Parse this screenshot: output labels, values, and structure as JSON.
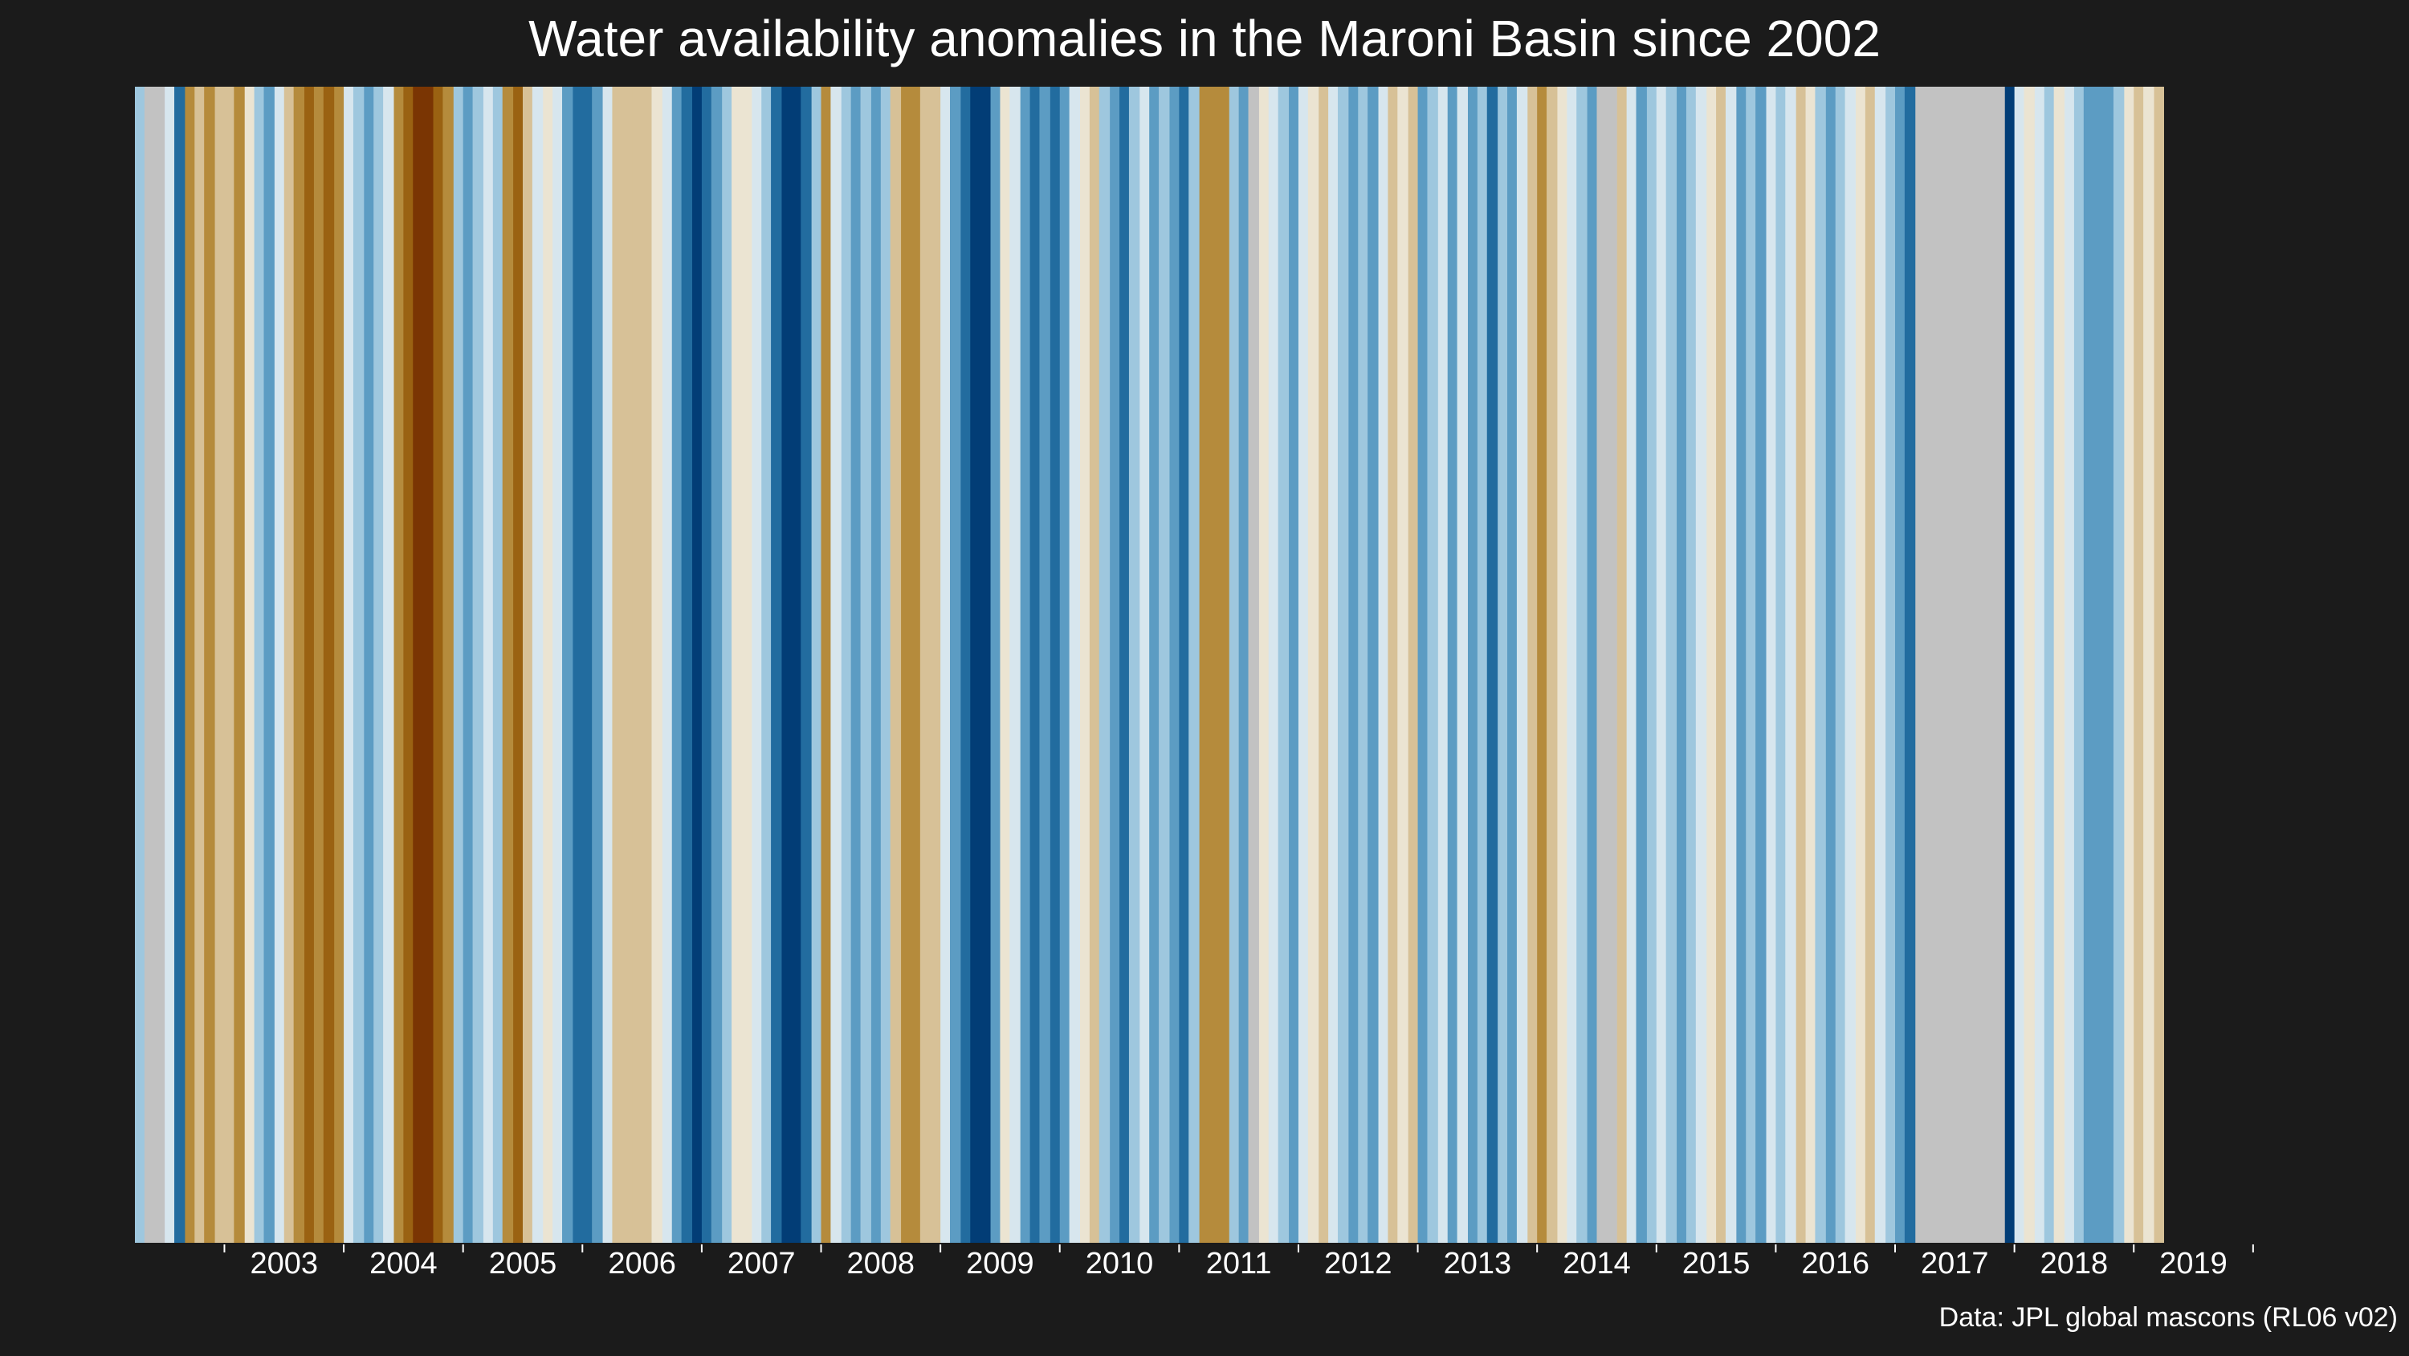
{
  "title": "Water availability anomalies in the Maroni Basin since 2002",
  "caption": "Data: JPL global mascons (RL06 v02)",
  "colors": {
    "background": "#1b1b1b",
    "text": "#ffffff",
    "missing": "#c2c2c2",
    "scale": [
      "#7a3503",
      "#9a6212",
      "#b58b3c",
      "#d7c197",
      "#ebe4d2",
      "#d7e6ee",
      "#9ec7de",
      "#5c9cc3",
      "#226c9f",
      "#023d76"
    ]
  },
  "chart_data": {
    "type": "heatmap",
    "title": "Water availability anomalies in the Maroni Basin since 2002",
    "xlabel": "",
    "ylabel": "",
    "x_tick_labels": [
      "2003",
      "2004",
      "2005",
      "2006",
      "2007",
      "2008",
      "2009",
      "2010",
      "2011",
      "2012",
      "2013",
      "2014",
      "2015",
      "2016",
      "2017",
      "2018",
      "2019"
    ],
    "x_range_years": [
      2002.25,
      2020.25
    ],
    "value_scale": "anomaly class from -5 (driest, dark brown) to +5 (wettest, dark blue); null = no data (grey)",
    "stripes": [
      {
        "start": 2002.25,
        "end": 2002.33,
        "value": 2
      },
      {
        "start": 2002.33,
        "end": 2002.5,
        "value": null
      },
      {
        "start": 2002.5,
        "end": 2002.58,
        "value": 1
      },
      {
        "start": 2002.58,
        "end": 2002.67,
        "value": 4
      },
      {
        "start": 2002.67,
        "end": 2002.75,
        "value": -3
      },
      {
        "start": 2002.75,
        "end": 2002.83,
        "value": -2
      },
      {
        "start": 2002.83,
        "end": 2002.92,
        "value": -3
      },
      {
        "start": 2002.92,
        "end": 2003.08,
        "value": -2
      },
      {
        "start": 2003.08,
        "end": 2003.17,
        "value": -3
      },
      {
        "start": 2003.17,
        "end": 2003.25,
        "value": -1
      },
      {
        "start": 2003.25,
        "end": 2003.33,
        "value": 2
      },
      {
        "start": 2003.33,
        "end": 2003.42,
        "value": 3
      },
      {
        "start": 2003.42,
        "end": 2003.5,
        "value": 1
      },
      {
        "start": 2003.5,
        "end": 2003.58,
        "value": -2
      },
      {
        "start": 2003.58,
        "end": 2003.67,
        "value": -3
      },
      {
        "start": 2003.67,
        "end": 2003.75,
        "value": -4
      },
      {
        "start": 2003.75,
        "end": 2003.83,
        "value": -3
      },
      {
        "start": 2003.83,
        "end": 2003.92,
        "value": -4
      },
      {
        "start": 2003.92,
        "end": 2004.0,
        "value": -3
      },
      {
        "start": 2004.0,
        "end": 2004.08,
        "value": 1
      },
      {
        "start": 2004.08,
        "end": 2004.17,
        "value": 2
      },
      {
        "start": 2004.17,
        "end": 2004.25,
        "value": 3
      },
      {
        "start": 2004.25,
        "end": 2004.33,
        "value": 2
      },
      {
        "start": 2004.33,
        "end": 2004.42,
        "value": 1
      },
      {
        "start": 2004.42,
        "end": 2004.5,
        "value": -3
      },
      {
        "start": 2004.5,
        "end": 2004.58,
        "value": -4
      },
      {
        "start": 2004.58,
        "end": 2004.75,
        "value": -5
      },
      {
        "start": 2004.75,
        "end": 2004.83,
        "value": -4
      },
      {
        "start": 2004.83,
        "end": 2004.92,
        "value": -3
      },
      {
        "start": 2004.92,
        "end": 2005.0,
        "value": 2
      },
      {
        "start": 2005.0,
        "end": 2005.08,
        "value": 3
      },
      {
        "start": 2005.08,
        "end": 2005.17,
        "value": 2
      },
      {
        "start": 2005.17,
        "end": 2005.25,
        "value": 1
      },
      {
        "start": 2005.25,
        "end": 2005.33,
        "value": 2
      },
      {
        "start": 2005.33,
        "end": 2005.42,
        "value": -3
      },
      {
        "start": 2005.42,
        "end": 2005.5,
        "value": -4
      },
      {
        "start": 2005.5,
        "end": 2005.58,
        "value": -2
      },
      {
        "start": 2005.58,
        "end": 2005.67,
        "value": 1
      },
      {
        "start": 2005.67,
        "end": 2005.75,
        "value": -1
      },
      {
        "start": 2005.75,
        "end": 2005.83,
        "value": 1
      },
      {
        "start": 2005.83,
        "end": 2005.92,
        "value": 3
      },
      {
        "start": 2005.92,
        "end": 2006.08,
        "value": 4
      },
      {
        "start": 2006.08,
        "end": 2006.17,
        "value": 3
      },
      {
        "start": 2006.17,
        "end": 2006.25,
        "value": 1
      },
      {
        "start": 2006.25,
        "end": 2006.42,
        "value": -2
      },
      {
        "start": 2006.42,
        "end": 2006.58,
        "value": -2
      },
      {
        "start": 2006.58,
        "end": 2006.67,
        "value": -1
      },
      {
        "start": 2006.67,
        "end": 2006.75,
        "value": 1
      },
      {
        "start": 2006.75,
        "end": 2006.83,
        "value": 3
      },
      {
        "start": 2006.83,
        "end": 2006.92,
        "value": 4
      },
      {
        "start": 2006.92,
        "end": 2007.0,
        "value": 5
      },
      {
        "start": 2007.0,
        "end": 2007.08,
        "value": 4
      },
      {
        "start": 2007.08,
        "end": 2007.17,
        "value": 3
      },
      {
        "start": 2007.17,
        "end": 2007.25,
        "value": 2
      },
      {
        "start": 2007.25,
        "end": 2007.42,
        "value": -1
      },
      {
        "start": 2007.42,
        "end": 2007.5,
        "value": 1
      },
      {
        "start": 2007.5,
        "end": 2007.58,
        "value": 2
      },
      {
        "start": 2007.58,
        "end": 2007.67,
        "value": 4
      },
      {
        "start": 2007.67,
        "end": 2007.83,
        "value": 5
      },
      {
        "start": 2007.83,
        "end": 2007.92,
        "value": 4
      },
      {
        "start": 2007.92,
        "end": 2008.0,
        "value": 2
      },
      {
        "start": 2008.0,
        "end": 2008.08,
        "value": -3
      },
      {
        "start": 2008.08,
        "end": 2008.17,
        "value": 1
      },
      {
        "start": 2008.17,
        "end": 2008.25,
        "value": 2
      },
      {
        "start": 2008.25,
        "end": 2008.33,
        "value": 3
      },
      {
        "start": 2008.33,
        "end": 2008.42,
        "value": 2
      },
      {
        "start": 2008.42,
        "end": 2008.5,
        "value": 3
      },
      {
        "start": 2008.5,
        "end": 2008.58,
        "value": 2
      },
      {
        "start": 2008.58,
        "end": 2008.67,
        "value": -2
      },
      {
        "start": 2008.67,
        "end": 2008.83,
        "value": -3
      },
      {
        "start": 2008.83,
        "end": 2009.0,
        "value": -2
      },
      {
        "start": 2009.0,
        "end": 2009.08,
        "value": 1
      },
      {
        "start": 2009.08,
        "end": 2009.17,
        "value": 3
      },
      {
        "start": 2009.17,
        "end": 2009.25,
        "value": 4
      },
      {
        "start": 2009.25,
        "end": 2009.42,
        "value": 5
      },
      {
        "start": 2009.42,
        "end": 2009.5,
        "value": 3
      },
      {
        "start": 2009.5,
        "end": 2009.58,
        "value": -1
      },
      {
        "start": 2009.58,
        "end": 2009.67,
        "value": 1
      },
      {
        "start": 2009.67,
        "end": 2009.75,
        "value": 3
      },
      {
        "start": 2009.75,
        "end": 2009.83,
        "value": 4
      },
      {
        "start": 2009.83,
        "end": 2009.92,
        "value": 3
      },
      {
        "start": 2009.92,
        "end": 2010.0,
        "value": 4
      },
      {
        "start": 2010.0,
        "end": 2010.08,
        "value": 3
      },
      {
        "start": 2010.08,
        "end": 2010.17,
        "value": 1
      },
      {
        "start": 2010.17,
        "end": 2010.25,
        "value": -1
      },
      {
        "start": 2010.25,
        "end": 2010.33,
        "value": -2
      },
      {
        "start": 2010.33,
        "end": 2010.42,
        "value": 2
      },
      {
        "start": 2010.42,
        "end": 2010.5,
        "value": 3
      },
      {
        "start": 2010.5,
        "end": 2010.58,
        "value": 4
      },
      {
        "start": 2010.58,
        "end": 2010.67,
        "value": 2
      },
      {
        "start": 2010.67,
        "end": 2010.75,
        "value": 1
      },
      {
        "start": 2010.75,
        "end": 2010.83,
        "value": 3
      },
      {
        "start": 2010.83,
        "end": 2010.92,
        "value": 2
      },
      {
        "start": 2010.92,
        "end": 2011.0,
        "value": 3
      },
      {
        "start": 2011.0,
        "end": 2011.08,
        "value": 4
      },
      {
        "start": 2011.08,
        "end": 2011.17,
        "value": 2
      },
      {
        "start": 2011.17,
        "end": 2011.25,
        "value": -3
      },
      {
        "start": 2011.25,
        "end": 2011.42,
        "value": -3
      },
      {
        "start": 2011.42,
        "end": 2011.5,
        "value": 2
      },
      {
        "start": 2011.5,
        "end": 2011.58,
        "value": 3
      },
      {
        "start": 2011.58,
        "end": 2011.67,
        "value": null
      },
      {
        "start": 2011.67,
        "end": 2011.75,
        "value": -1
      },
      {
        "start": 2011.75,
        "end": 2011.83,
        "value": 1
      },
      {
        "start": 2011.83,
        "end": 2011.92,
        "value": 2
      },
      {
        "start": 2011.92,
        "end": 2012.0,
        "value": 3
      },
      {
        "start": 2012.0,
        "end": 2012.08,
        "value": 1
      },
      {
        "start": 2012.08,
        "end": 2012.17,
        "value": -1
      },
      {
        "start": 2012.17,
        "end": 2012.25,
        "value": -2
      },
      {
        "start": 2012.25,
        "end": 2012.33,
        "value": 1
      },
      {
        "start": 2012.33,
        "end": 2012.42,
        "value": 2
      },
      {
        "start": 2012.42,
        "end": 2012.5,
        "value": 3
      },
      {
        "start": 2012.5,
        "end": 2012.58,
        "value": 2
      },
      {
        "start": 2012.58,
        "end": 2012.67,
        "value": 3
      },
      {
        "start": 2012.67,
        "end": 2012.75,
        "value": 1
      },
      {
        "start": 2012.75,
        "end": 2012.83,
        "value": -2
      },
      {
        "start": 2012.83,
        "end": 2012.92,
        "value": -1
      },
      {
        "start": 2012.92,
        "end": 2013.0,
        "value": -2
      },
      {
        "start": 2013.0,
        "end": 2013.08,
        "value": 3
      },
      {
        "start": 2013.08,
        "end": 2013.17,
        "value": 2
      },
      {
        "start": 2013.17,
        "end": 2013.25,
        "value": 1
      },
      {
        "start": 2013.25,
        "end": 2013.33,
        "value": 3
      },
      {
        "start": 2013.33,
        "end": 2013.42,
        "value": 1
      },
      {
        "start": 2013.42,
        "end": 2013.5,
        "value": 3
      },
      {
        "start": 2013.5,
        "end": 2013.58,
        "value": 2
      },
      {
        "start": 2013.58,
        "end": 2013.67,
        "value": 4
      },
      {
        "start": 2013.67,
        "end": 2013.75,
        "value": 2
      },
      {
        "start": 2013.75,
        "end": 2013.83,
        "value": 3
      },
      {
        "start": 2013.83,
        "end": 2013.92,
        "value": 1
      },
      {
        "start": 2013.92,
        "end": 2014.0,
        "value": -2
      },
      {
        "start": 2014.0,
        "end": 2014.08,
        "value": -3
      },
      {
        "start": 2014.08,
        "end": 2014.17,
        "value": -2
      },
      {
        "start": 2014.17,
        "end": 2014.25,
        "value": -1
      },
      {
        "start": 2014.25,
        "end": 2014.33,
        "value": 1
      },
      {
        "start": 2014.33,
        "end": 2014.42,
        "value": 2
      },
      {
        "start": 2014.42,
        "end": 2014.5,
        "value": 3
      },
      {
        "start": 2014.5,
        "end": 2014.67,
        "value": null
      },
      {
        "start": 2014.67,
        "end": 2014.75,
        "value": -2
      },
      {
        "start": 2014.75,
        "end": 2014.83,
        "value": 1
      },
      {
        "start": 2014.83,
        "end": 2014.92,
        "value": 3
      },
      {
        "start": 2014.92,
        "end": 2015.0,
        "value": 2
      },
      {
        "start": 2015.0,
        "end": 2015.08,
        "value": 1
      },
      {
        "start": 2015.08,
        "end": 2015.17,
        "value": 2
      },
      {
        "start": 2015.17,
        "end": 2015.25,
        "value": 3
      },
      {
        "start": 2015.25,
        "end": 2015.33,
        "value": 2
      },
      {
        "start": 2015.33,
        "end": 2015.42,
        "value": 1
      },
      {
        "start": 2015.42,
        "end": 2015.5,
        "value": -1
      },
      {
        "start": 2015.5,
        "end": 2015.58,
        "value": -2
      },
      {
        "start": 2015.58,
        "end": 2015.67,
        "value": 1
      },
      {
        "start": 2015.67,
        "end": 2015.75,
        "value": 3
      },
      {
        "start": 2015.75,
        "end": 2015.83,
        "value": 2
      },
      {
        "start": 2015.83,
        "end": 2015.92,
        "value": 3
      },
      {
        "start": 2015.92,
        "end": 2016.0,
        "value": 1
      },
      {
        "start": 2016.0,
        "end": 2016.08,
        "value": 2
      },
      {
        "start": 2016.08,
        "end": 2016.17,
        "value": 1
      },
      {
        "start": 2016.17,
        "end": 2016.25,
        "value": -2
      },
      {
        "start": 2016.25,
        "end": 2016.33,
        "value": -1
      },
      {
        "start": 2016.33,
        "end": 2016.42,
        "value": 2
      },
      {
        "start": 2016.42,
        "end": 2016.5,
        "value": 3
      },
      {
        "start": 2016.5,
        "end": 2016.58,
        "value": 2
      },
      {
        "start": 2016.58,
        "end": 2016.67,
        "value": 1
      },
      {
        "start": 2016.67,
        "end": 2016.75,
        "value": -1
      },
      {
        "start": 2016.75,
        "end": 2016.83,
        "value": -2
      },
      {
        "start": 2016.83,
        "end": 2016.92,
        "value": 1
      },
      {
        "start": 2016.92,
        "end": 2017.0,
        "value": 2
      },
      {
        "start": 2017.0,
        "end": 2017.08,
        "value": 3
      },
      {
        "start": 2017.08,
        "end": 2017.17,
        "value": 4
      },
      {
        "start": 2017.17,
        "end": 2017.83,
        "value": null
      },
      {
        "start": 2017.83,
        "end": 2017.92,
        "value": null
      },
      {
        "start": 2017.92,
        "end": 2018.0,
        "value": 5
      },
      {
        "start": 2018.0,
        "end": 2018.08,
        "value": 1
      },
      {
        "start": 2018.08,
        "end": 2018.17,
        "value": -1
      },
      {
        "start": 2018.17,
        "end": 2018.25,
        "value": 1
      },
      {
        "start": 2018.25,
        "end": 2018.33,
        "value": 2
      },
      {
        "start": 2018.33,
        "end": 2018.42,
        "value": -1
      },
      {
        "start": 2018.42,
        "end": 2018.5,
        "value": 1
      },
      {
        "start": 2018.5,
        "end": 2018.58,
        "value": 2
      },
      {
        "start": 2018.58,
        "end": 2018.83,
        "value": 3
      },
      {
        "start": 2018.83,
        "end": 2018.92,
        "value": 2
      },
      {
        "start": 2018.92,
        "end": 2019.0,
        "value": -1
      },
      {
        "start": 2019.0,
        "end": 2019.08,
        "value": -2
      },
      {
        "start": 2019.08,
        "end": 2019.17,
        "value": -1
      },
      {
        "start": 2019.17,
        "end": 2019.25,
        "value": -2
      }
    ]
  }
}
